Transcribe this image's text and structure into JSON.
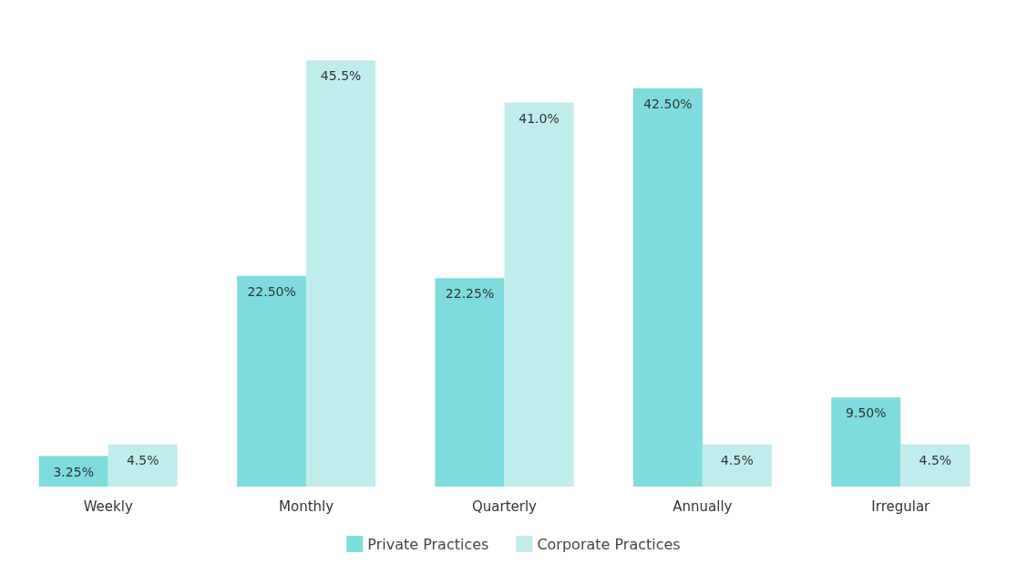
{
  "chart_data": {
    "type": "bar",
    "categories": [
      "Weekly",
      "Monthly",
      "Quarterly",
      "Annually",
      "Irregular"
    ],
    "series": [
      {
        "name": "Private Practices",
        "color": "#7fdcdc",
        "values": [
          3.25,
          22.5,
          22.25,
          42.5,
          9.5
        ],
        "value_labels": [
          "3.25%",
          "22.50%",
          "22.25%",
          "42.50%",
          "9.50%"
        ]
      },
      {
        "name": "Corporate Practices",
        "color": "#c0ecec",
        "values": [
          4.5,
          45.5,
          41.0,
          4.5,
          4.5
        ],
        "value_labels": [
          "4.5%",
          "45.5%",
          "41.0%",
          "4.5%",
          "4.5%"
        ]
      }
    ],
    "legend": "bottom",
    "grid": false,
    "tick_labels": "x"
  }
}
